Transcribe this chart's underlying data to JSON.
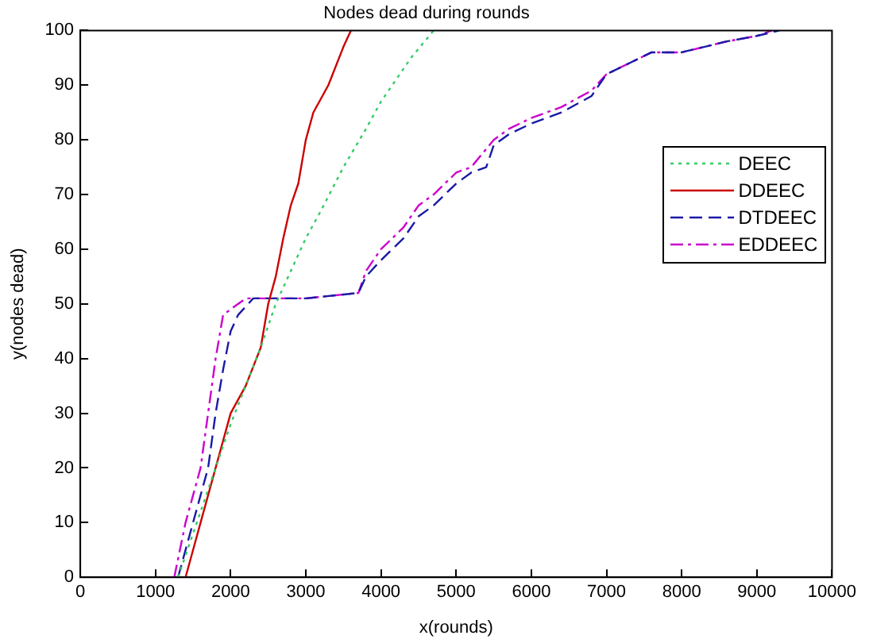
{
  "chart_data": {
    "type": "line",
    "title": "Nodes dead during rounds",
    "xlabel": "x(rounds)",
    "ylabel": "y(nodes dead)",
    "xlim": [
      0,
      10000
    ],
    "xticks": [
      0,
      1000,
      2000,
      3000,
      4000,
      5000,
      6000,
      7000,
      8000,
      9000,
      10000
    ],
    "ylim": [
      0,
      100
    ],
    "yticks": [
      0,
      10,
      20,
      30,
      40,
      50,
      60,
      70,
      80,
      90,
      100
    ],
    "grid": false,
    "legend": "right",
    "marker": "none",
    "series": [
      {
        "name": "DEEC",
        "color": "#33cc66",
        "line_style": "dotted",
        "x": [
          1300,
          1500,
          1800,
          2000,
          2200,
          2400,
          2600,
          2800,
          3000,
          3200,
          3500,
          3800,
          4000,
          4200,
          4400,
          4700
        ],
        "values": [
          0,
          8,
          20,
          28,
          35,
          42,
          50,
          56,
          62,
          67,
          75,
          82,
          87,
          91,
          95,
          100
        ]
      },
      {
        "name": "DDEEC",
        "color": "#cc0000",
        "line_style": "solid",
        "x": [
          1400,
          1500,
          1600,
          1700,
          1800,
          1900,
          2000,
          2200,
          2400,
          2500,
          2600,
          2700,
          2800,
          2900,
          3000,
          3100,
          3300,
          3500,
          3600
        ],
        "values": [
          0,
          5,
          10,
          15,
          20,
          25,
          30,
          35,
          42,
          50,
          55,
          62,
          68,
          72,
          80,
          85,
          90,
          97,
          100
        ]
      },
      {
        "name": "DTDEEC",
        "color": "#1a1aa6",
        "line_style": "dashed",
        "x": [
          1300,
          1500,
          1700,
          1800,
          1900,
          2000,
          2100,
          2300,
          3000,
          3700,
          3800,
          4000,
          4300,
          4500,
          4700,
          5000,
          5200,
          5400,
          5500,
          5700,
          6000,
          6400,
          6800,
          7000,
          7300,
          7600,
          8000,
          8600,
          9000,
          9300
        ],
        "values": [
          0,
          10,
          20,
          30,
          38,
          45,
          48,
          51,
          51,
          52,
          55,
          58,
          62,
          66,
          68,
          72,
          74,
          75,
          79,
          81,
          83,
          85,
          88,
          92,
          94,
          96,
          96,
          98,
          99,
          100
        ]
      },
      {
        "name": "EDDEEC",
        "color": "#cc00cc",
        "line_style": "dashdot",
        "x": [
          1250,
          1400,
          1600,
          1700,
          1800,
          1900,
          2200,
          3000,
          3700,
          3800,
          4000,
          4300,
          4500,
          4700,
          5000,
          5200,
          5500,
          5700,
          6000,
          6400,
          6800,
          7000,
          7300,
          7600,
          8000,
          8600,
          9000,
          9200
        ],
        "values": [
          0,
          10,
          20,
          30,
          40,
          48,
          51,
          51,
          52,
          56,
          60,
          64,
          68,
          70,
          74,
          75,
          80,
          82,
          84,
          86,
          89,
          92,
          94,
          96,
          96,
          98,
          99,
          100
        ]
      }
    ]
  }
}
